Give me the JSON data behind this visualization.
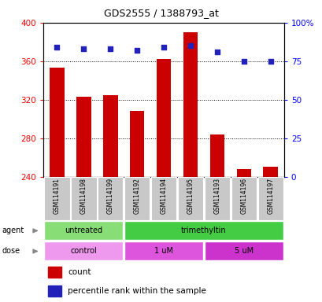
{
  "title": "GDS2555 / 1388793_at",
  "samples": [
    "GSM114191",
    "GSM114198",
    "GSM114199",
    "GSM114192",
    "GSM114194",
    "GSM114195",
    "GSM114193",
    "GSM114196",
    "GSM114197"
  ],
  "counts": [
    353,
    323,
    325,
    308,
    362,
    390,
    284,
    248,
    250
  ],
  "percentile_ranks": [
    84,
    83,
    83,
    82,
    84,
    85,
    81,
    75,
    75
  ],
  "ylim_left": [
    240,
    400
  ],
  "ylim_right": [
    0,
    100
  ],
  "left_ticks": [
    240,
    280,
    320,
    360,
    400
  ],
  "right_ticks": [
    0,
    25,
    50,
    75,
    100
  ],
  "bar_color": "#cc0000",
  "dot_color": "#2222bb",
  "agent_groups": [
    {
      "label": "untreated",
      "start": 0,
      "end": 3,
      "color": "#88dd77"
    },
    {
      "label": "trimethyltin",
      "start": 3,
      "end": 9,
      "color": "#44cc44"
    }
  ],
  "dose_groups": [
    {
      "label": "control",
      "start": 0,
      "end": 3,
      "color": "#ee99ee"
    },
    {
      "label": "1 uM",
      "start": 3,
      "end": 6,
      "color": "#dd55dd"
    },
    {
      "label": "5 uM",
      "start": 6,
      "end": 9,
      "color": "#cc33cc"
    }
  ],
  "agent_label": "agent",
  "dose_label": "dose",
  "legend_count_label": "count",
  "legend_percentile_label": "percentile rank within the sample",
  "bar_width": 0.55,
  "sample_box_color": "#c8c8c8"
}
